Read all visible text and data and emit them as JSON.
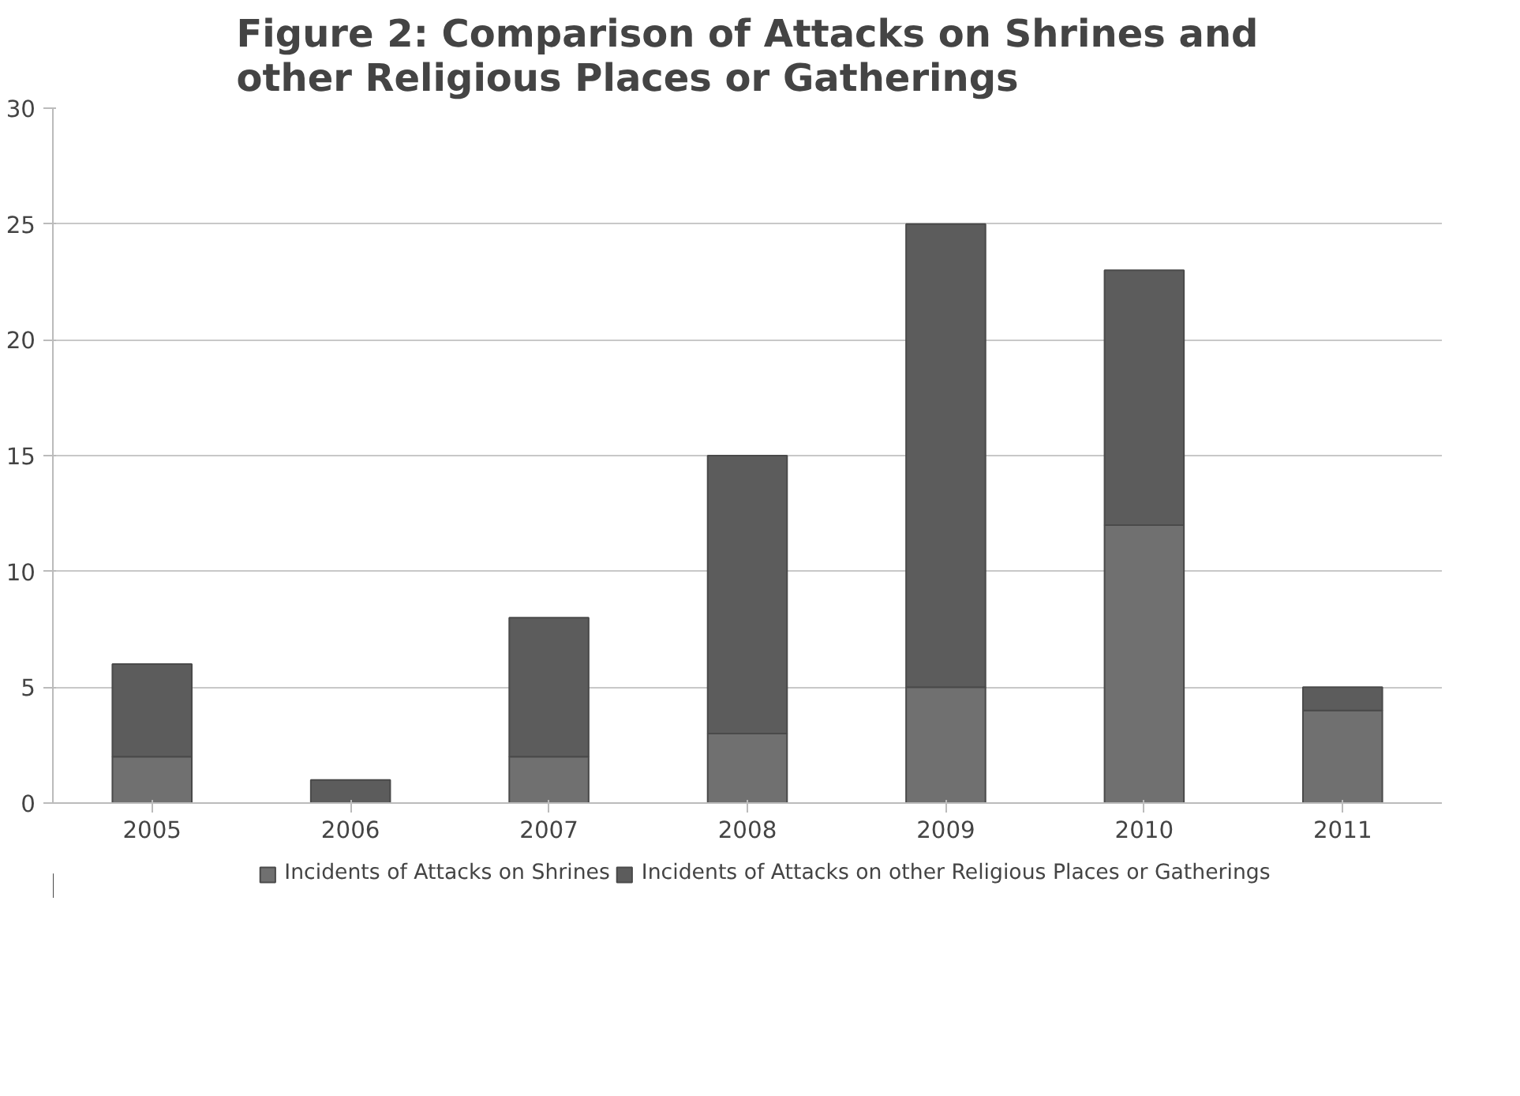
{
  "chart_data": {
    "type": "bar",
    "title": "Figure 2: Comparison of Attacks on Shrines and\nother Religious Places or Gatherings",
    "categories": [
      "2005",
      "2006",
      "2007",
      "2008",
      "2009",
      "2010",
      "2011"
    ],
    "stacked": true,
    "series": [
      {
        "name": "Incidents of Attacks on Shrines",
        "color": "#707070",
        "values": [
          2,
          0,
          2,
          3,
          5,
          12,
          4
        ]
      },
      {
        "name": "Incidents of Attacks on other Religious Places or Gatherings",
        "color": "#5c5c5c",
        "values": [
          4,
          1,
          6,
          12,
          20,
          11,
          1
        ]
      }
    ],
    "ylim": [
      0,
      30
    ],
    "yticks": [
      0,
      5,
      10,
      15,
      20,
      25,
      30
    ],
    "grid": "y",
    "legend": "bottom"
  }
}
